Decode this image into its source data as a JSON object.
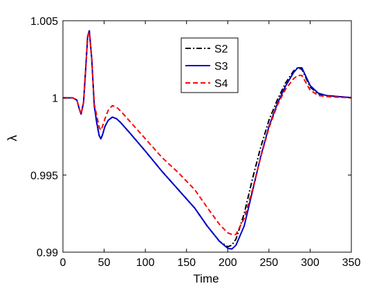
{
  "chart_data": {
    "type": "line",
    "title": "",
    "xlabel": "Time",
    "ylabel": "λ",
    "xlim": [
      0,
      350
    ],
    "ylim": [
      0.99,
      1.005
    ],
    "xticks": [
      0,
      50,
      100,
      150,
      200,
      250,
      300,
      350
    ],
    "yticks": [
      0.99,
      0.995,
      1,
      1.005
    ],
    "xtick_labels": [
      "0",
      "50",
      "100",
      "150",
      "200",
      "250",
      "300",
      "350"
    ],
    "ytick_labels": [
      "0.99",
      "0.995",
      "1",
      "1.005"
    ],
    "grid": false,
    "legend_position": "top-center",
    "series": [
      {
        "name": "S2",
        "color": "#000000",
        "dash": "dashdot",
        "x": [
          0,
          12,
          17,
          20,
          22,
          25,
          28,
          30,
          32,
          35,
          38,
          41,
          44,
          46,
          48,
          51,
          55,
          60,
          65,
          70,
          80,
          100,
          120,
          140,
          160,
          175,
          190,
          200,
          205,
          210,
          220,
          230,
          240,
          250,
          260,
          270,
          280,
          285,
          290,
          300,
          310,
          320,
          335,
          350
        ],
        "y": [
          1.0,
          1.0,
          0.99985,
          0.99925,
          0.99895,
          0.9997,
          1.0022,
          1.004,
          1.00435,
          1.0025,
          0.9995,
          0.9984,
          0.99755,
          0.99735,
          0.9976,
          0.99815,
          0.99855,
          0.99875,
          0.99865,
          0.9984,
          0.9978,
          0.99655,
          0.99525,
          0.99405,
          0.99285,
          0.9917,
          0.9907,
          0.99035,
          0.99045,
          0.99085,
          0.9925,
          0.99475,
          0.9968,
          0.99855,
          0.99985,
          1.00095,
          1.00175,
          1.00195,
          1.00185,
          1.0007,
          1.00025,
          1.00015,
          1.00008,
          1.00002
        ]
      },
      {
        "name": "S3",
        "color": "#0000cc",
        "dash": "solid",
        "x": [
          0,
          12,
          17,
          20,
          22,
          25,
          28,
          30,
          32,
          35,
          38,
          41,
          44,
          46,
          48,
          51,
          55,
          60,
          65,
          70,
          80,
          100,
          120,
          140,
          160,
          175,
          190,
          200,
          205,
          210,
          220,
          230,
          240,
          250,
          260,
          270,
          280,
          285,
          290,
          300,
          310,
          320,
          335,
          350
        ],
        "y": [
          1.0,
          1.0,
          0.99985,
          0.99925,
          0.99895,
          0.9997,
          1.0022,
          1.004,
          1.00435,
          1.0025,
          0.9995,
          0.9984,
          0.99755,
          0.99735,
          0.9976,
          0.99815,
          0.99855,
          0.99875,
          0.99865,
          0.9984,
          0.9978,
          0.99655,
          0.99525,
          0.99405,
          0.99285,
          0.9917,
          0.9907,
          0.99025,
          0.9902,
          0.99045,
          0.9917,
          0.99395,
          0.9962,
          0.99815,
          0.9996,
          1.00075,
          1.00165,
          1.00195,
          1.00195,
          1.0008,
          1.0003,
          1.00015,
          1.00008,
          1.00002
        ]
      },
      {
        "name": "S4",
        "color": "#ff0000",
        "dash": "dashed",
        "x": [
          0,
          12,
          17,
          20,
          22,
          25,
          28,
          30,
          32,
          35,
          38,
          41,
          44,
          46,
          48,
          51,
          55,
          60,
          65,
          70,
          80,
          100,
          120,
          140,
          160,
          175,
          190,
          200,
          205,
          210,
          220,
          230,
          240,
          250,
          260,
          270,
          280,
          285,
          290,
          300,
          310,
          320,
          335,
          350
        ],
        "y": [
          1.0,
          1.0,
          0.99985,
          0.99925,
          0.99895,
          0.9997,
          1.0022,
          1.004,
          1.00425,
          1.0025,
          0.9996,
          0.99885,
          0.9981,
          0.9979,
          0.99815,
          0.99865,
          0.9992,
          0.9995,
          0.9994,
          0.99915,
          0.99855,
          0.99735,
          0.99615,
          0.99515,
          0.99405,
          0.9929,
          0.9918,
          0.99125,
          0.99115,
          0.99115,
          0.9922,
          0.99405,
          0.99615,
          0.99805,
          0.9995,
          1.00055,
          1.00125,
          1.00145,
          1.00145,
          1.0005,
          1.00015,
          1.00008,
          1.00004,
          1.0
        ]
      }
    ]
  }
}
